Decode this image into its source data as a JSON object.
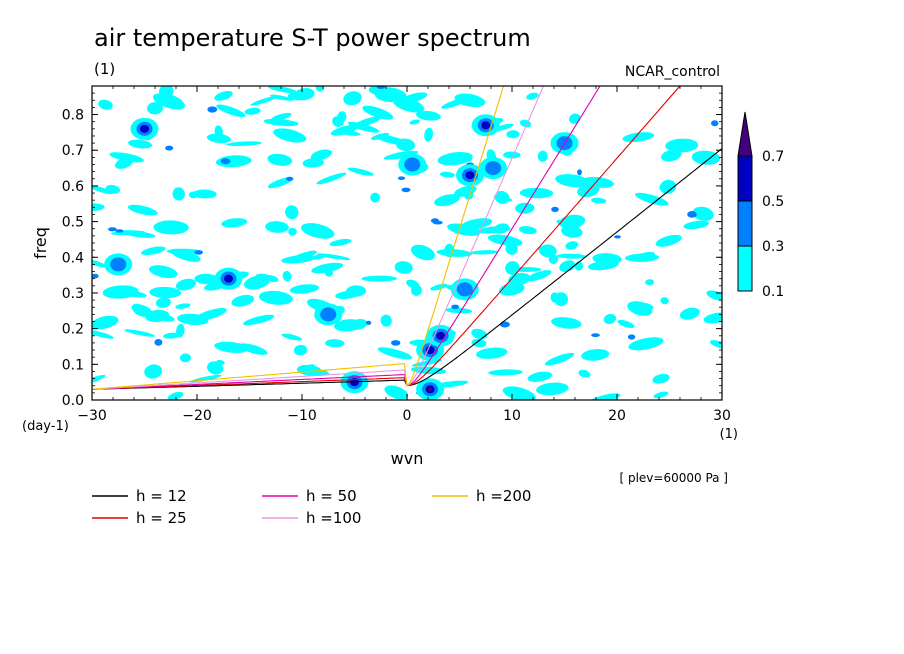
{
  "chart_data": {
    "type": "heatmap",
    "title": "air temperature S-T power spectrum",
    "subtitle_left": "(1)",
    "subtitle_right": "NCAR_control",
    "xlabel": "wvn",
    "ylabel": "freq",
    "x_unit": "(1)",
    "y_unit": "(day-1)",
    "level_note": "[ plev=60000 Pa ]",
    "xlim": [
      -30,
      30
    ],
    "ylim": [
      0,
      0.88
    ],
    "x_ticks": [
      "−30",
      "−20",
      "−10",
      "0",
      "10",
      "20",
      "30"
    ],
    "x_tick_values": [
      -30,
      -20,
      -10,
      0,
      10,
      20,
      30
    ],
    "y_ticks": [
      "0.0",
      "0.1",
      "0.2",
      "0.3",
      "0.4",
      "0.5",
      "0.6",
      "0.7",
      "0.8"
    ],
    "y_tick_values": [
      0,
      0.1,
      0.2,
      0.3,
      0.4,
      0.5,
      0.6,
      0.7,
      0.8
    ],
    "colorbar": {
      "levels": [
        "0.1",
        "0.3",
        "0.5",
        "0.7"
      ],
      "colors": [
        "#00ffff",
        "#0080ff",
        "#0000c0",
        "#400080"
      ]
    },
    "contour_patches": [
      {
        "x": 2.2,
        "y": 0.03,
        "level": 3
      },
      {
        "x": 2.2,
        "y": 0.14,
        "level": 2
      },
      {
        "x": 3.2,
        "y": 0.18,
        "level": 2
      },
      {
        "x": -5.0,
        "y": 0.05,
        "level": 2
      },
      {
        "x": 6.0,
        "y": 0.63,
        "level": 2
      },
      {
        "x": 7.5,
        "y": 0.77,
        "level": 2
      },
      {
        "x": -25.0,
        "y": 0.76,
        "level": 2
      },
      {
        "x": -27.5,
        "y": 0.38,
        "level": 1
      },
      {
        "x": -17.0,
        "y": 0.34,
        "level": 2
      },
      {
        "x": 5.5,
        "y": 0.31,
        "level": 1
      },
      {
        "x": 0.5,
        "y": 0.66,
        "level": 1
      },
      {
        "x": 8.2,
        "y": 0.65,
        "level": 1
      },
      {
        "x": 15.0,
        "y": 0.72,
        "level": 1
      },
      {
        "x": -7.5,
        "y": 0.24,
        "level": 1
      }
    ],
    "series": [
      {
        "name": "h = 12",
        "color": "#000000",
        "equivalent_depth": 12
      },
      {
        "name": "h = 25",
        "color": "#e00000",
        "equivalent_depth": 25
      },
      {
        "name": "h = 50",
        "color": "#e000b0",
        "equivalent_depth": 50
      },
      {
        "name": "h =100",
        "color": "#e898e0",
        "equivalent_depth": 100
      },
      {
        "name": "h =200",
        "color": "#f0c000",
        "equivalent_depth": 200
      }
    ]
  }
}
